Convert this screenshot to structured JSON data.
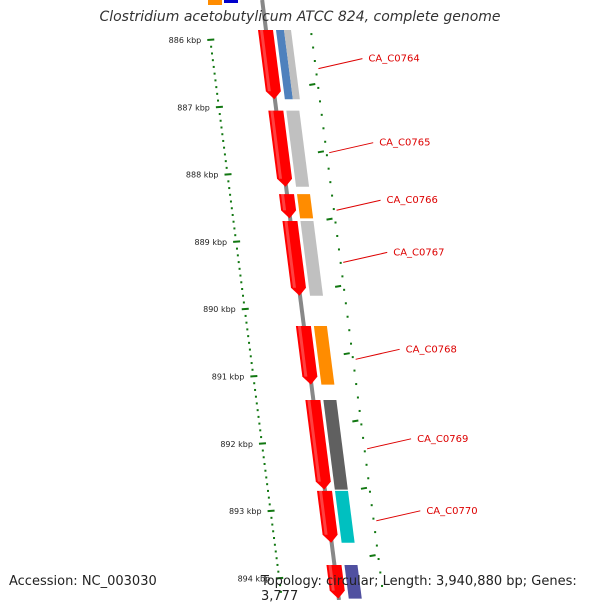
{
  "title": "Clostridium acetobutylicum ATCC 824, complete genome",
  "footer": {
    "accession": "Accession: NC_003030",
    "stats": "Topology: circular; Length: 3,940,880 bp; Genes: 3,777"
  },
  "colors": {
    "tick": "#117711",
    "forward_feature": "#ff0000",
    "backbone": "#888888",
    "label": "#dd0000",
    "label_line": "#dd0000"
  },
  "map": {
    "ticks": [
      {
        "label": "886 kbp",
        "kbp": 886
      },
      {
        "label": "887 kbp",
        "kbp": 887
      },
      {
        "label": "888 kbp",
        "kbp": 888
      },
      {
        "label": "889 kbp",
        "kbp": 889
      },
      {
        "label": "890 kbp",
        "kbp": 890
      },
      {
        "label": "891 kbp",
        "kbp": 891
      },
      {
        "label": "892 kbp",
        "kbp": 892
      },
      {
        "label": "893 kbp",
        "kbp": 893
      },
      {
        "label": "894 kbp",
        "kbp": 894
      }
    ],
    "genes": [
      {
        "name": "CA_C0764",
        "start_kbp": 885.72,
        "end_kbp": 886.88,
        "cog_color": "#4f81bd",
        "cog_color2": "#c0c0c0"
      },
      {
        "name": "CA_C0765",
        "start_kbp": 887.05,
        "end_kbp": 888.18,
        "cog_color": "#c0c0c0"
      },
      {
        "name": "CA_C0766",
        "start_kbp": 888.29,
        "end_kbp": 888.65,
        "cog_color": "#ff8c00"
      },
      {
        "name": "CA_C0767",
        "start_kbp": 888.69,
        "end_kbp": 889.8,
        "cog_color": "#c0c0c0"
      },
      {
        "name": "CA_C0768",
        "start_kbp": 890.25,
        "end_kbp": 891.12,
        "cog_color": "#ff8c00"
      },
      {
        "name": "CA_C0769",
        "start_kbp": 891.35,
        "end_kbp": 892.68,
        "cog_color": "#606060"
      },
      {
        "name": "CA_C0770",
        "start_kbp": 892.7,
        "end_kbp": 893.47,
        "cog_color": "#00c0c0"
      },
      {
        "name": "",
        "start_kbp": 893.8,
        "end_kbp": 894.3,
        "cog_color": "#5050a0"
      }
    ],
    "partial_top_features": [
      {
        "color": "#ff8c00"
      },
      {
        "color": "#0000cc"
      }
    ]
  }
}
